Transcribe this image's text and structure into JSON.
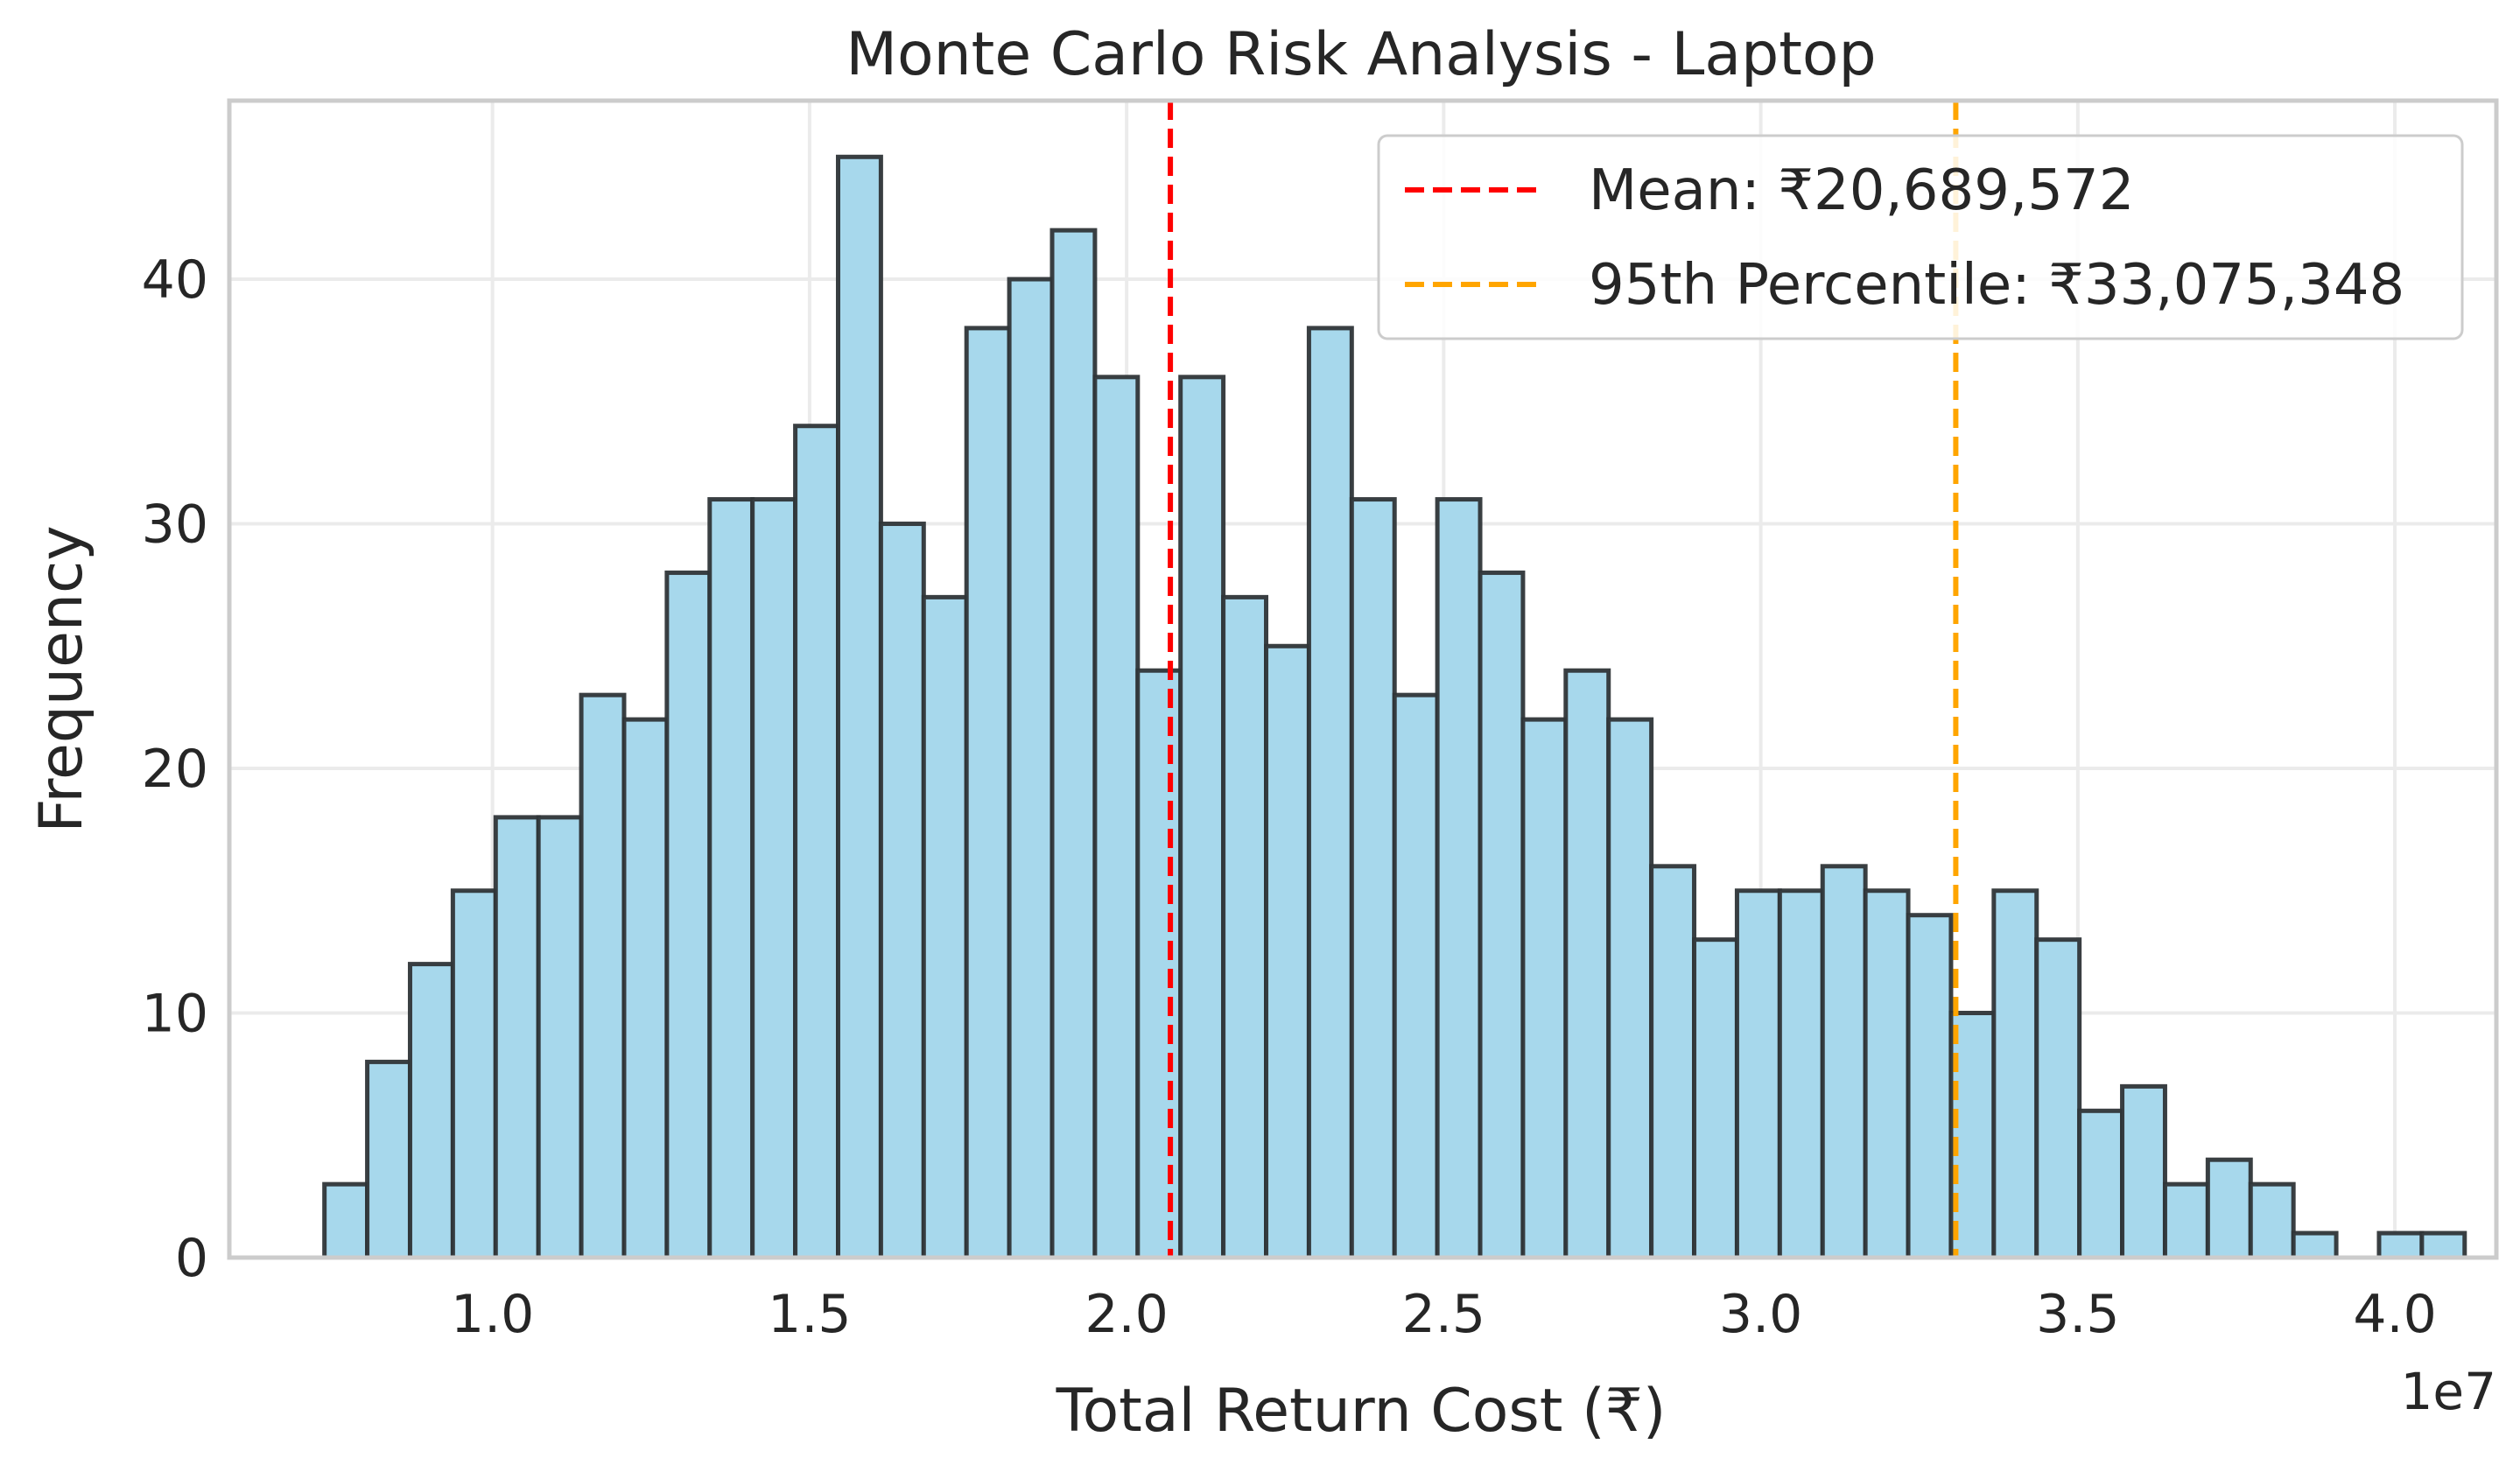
{
  "chart_data": {
    "type": "bar",
    "subtype": "histogram",
    "title": "Monte Carlo Risk Analysis - Laptop",
    "xlabel": "Total Return Cost (₹)",
    "ylabel": "Frequency",
    "x_offset_text": "1e7",
    "bin_start": 7350000,
    "bin_width": 675000,
    "counts": [
      3,
      8,
      12,
      15,
      18,
      18,
      23,
      22,
      28,
      31,
      31,
      34,
      45,
      30,
      27,
      38,
      40,
      42,
      36,
      24,
      36,
      27,
      25,
      38,
      31,
      23,
      31,
      28,
      22,
      24,
      22,
      16,
      13,
      15,
      15,
      16,
      15,
      14,
      10,
      15,
      13,
      6,
      7,
      3,
      4,
      3,
      1,
      0,
      1,
      1
    ],
    "xlim": [
      5850000,
      41600000
    ],
    "ylim": [
      0,
      47.3
    ],
    "x_ticks": [
      {
        "value": 10000000,
        "label": "1.0"
      },
      {
        "value": 15000000,
        "label": "1.5"
      },
      {
        "value": 20000000,
        "label": "2.0"
      },
      {
        "value": 25000000,
        "label": "2.5"
      },
      {
        "value": 30000000,
        "label": "3.0"
      },
      {
        "value": 35000000,
        "label": "3.5"
      },
      {
        "value": 40000000,
        "label": "4.0"
      }
    ],
    "y_ticks": [
      {
        "value": 0,
        "label": "0"
      },
      {
        "value": 10,
        "label": "10"
      },
      {
        "value": 20,
        "label": "20"
      },
      {
        "value": 30,
        "label": "30"
      },
      {
        "value": 40,
        "label": "40"
      }
    ],
    "reference_lines": [
      {
        "value": 20689572,
        "label": "Mean: ₹20,689,572",
        "color": "#ff0000"
      },
      {
        "value": 33075348,
        "label": "95th Percentile: ₹33,075,348",
        "color": "#ffa500"
      }
    ],
    "bar_color": "#a7d8ec",
    "bar_edge_color": "#2f3538",
    "grid": true,
    "legend_position": "top-right"
  }
}
